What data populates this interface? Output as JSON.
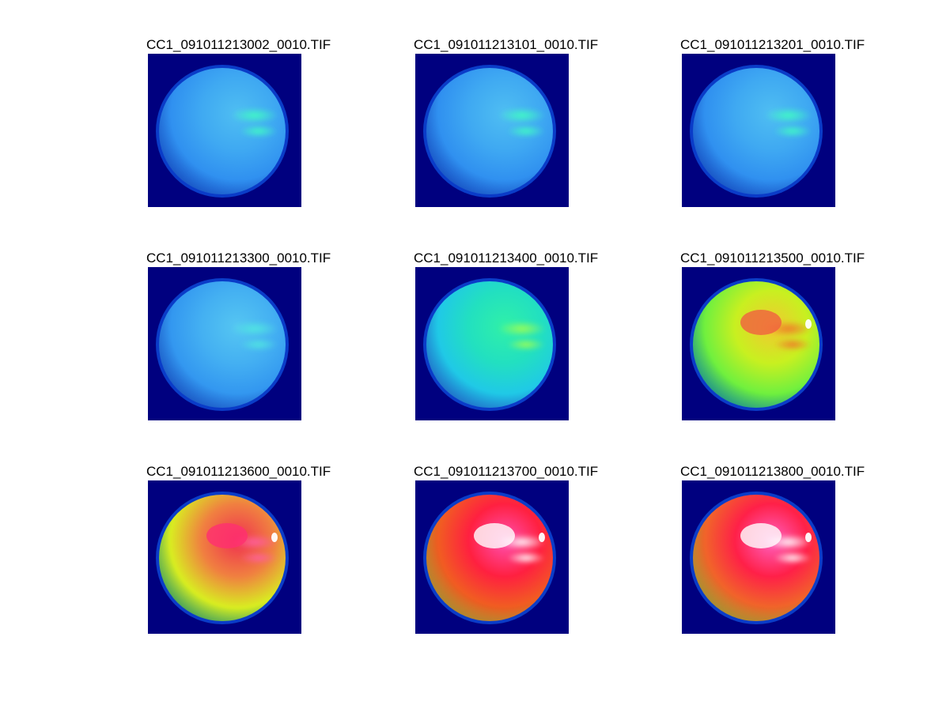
{
  "colors": {
    "background": "#00007f",
    "rim": "#0a3cc8"
  },
  "panels": [
    {
      "title": "CC1_091011213002_0010.TIF",
      "stops": [
        "#4fbef2",
        "#3fa9f2",
        "#2f8ff0",
        "#2070e8"
      ],
      "highlight": "#3fffc2",
      "blobs": []
    },
    {
      "title": "CC1_091011213101_0010.TIF",
      "stops": [
        "#4fbef2",
        "#3fa9f2",
        "#2f8ff0",
        "#2070e8"
      ],
      "highlight": "#3fffc2",
      "blobs": []
    },
    {
      "title": "CC1_091011213201_0010.TIF",
      "stops": [
        "#4fbef2",
        "#3fa9f2",
        "#2f8ff0",
        "#2070e8"
      ],
      "highlight": "#3fffc2",
      "blobs": []
    },
    {
      "title": "CC1_091011213300_0010.TIF",
      "stops": [
        "#55c6f2",
        "#44b0f2",
        "#3296f0",
        "#2476e8"
      ],
      "highlight": "#50e8e0",
      "blobs": []
    },
    {
      "title": "CC1_091011213400_0010.TIF",
      "stops": [
        "#30f0a8",
        "#22e0c0",
        "#20c8e8",
        "#2d92ee"
      ],
      "highlight": "#a0ff50",
      "blobs": []
    },
    {
      "title": "CC1_091011213500_0010.TIF",
      "stops": [
        "#f2c830",
        "#c8f020",
        "#6cf040",
        "#28c8a0"
      ],
      "highlight": "#f07828",
      "blobs": [
        "#f06040",
        "#ffffff"
      ]
    },
    {
      "title": "CC1_091011213600_0010.TIF",
      "stops": [
        "#f03050",
        "#f08040",
        "#d8f020",
        "#50d860"
      ],
      "highlight": "#ff60a0",
      "blobs": [
        "#ff3070",
        "#ffffff"
      ]
    },
    {
      "title": "CC1_091011213700_0010.TIF",
      "stops": [
        "#ff50b0",
        "#ff2040",
        "#f06020",
        "#e8c820"
      ],
      "highlight": "#ffffff",
      "blobs": [
        "#ffffff",
        "#ffffff"
      ]
    },
    {
      "title": "CC1_091011213800_0010.TIF",
      "stops": [
        "#ff60c0",
        "#ff2048",
        "#f06828",
        "#e0d020"
      ],
      "highlight": "#ffffff",
      "blobs": [
        "#ffffff",
        "#ffffff"
      ]
    }
  ]
}
